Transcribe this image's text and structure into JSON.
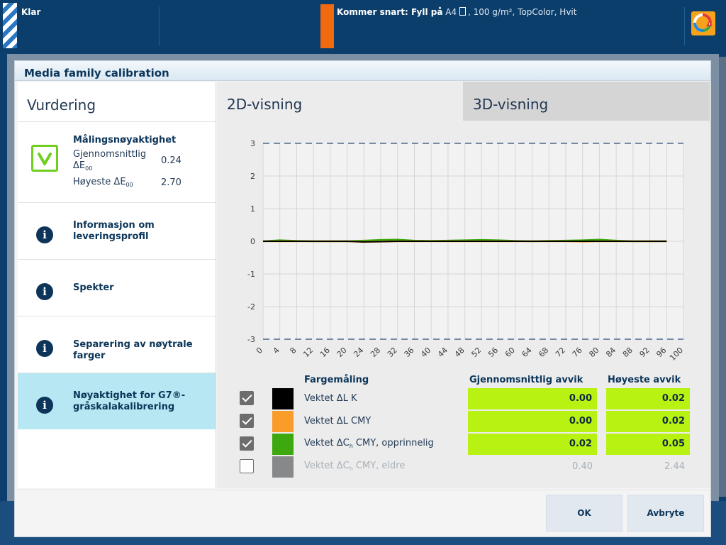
{
  "statusbar": {
    "status": "Klar",
    "coming_soon_label": "Kommer snart: Fyll på",
    "media_size": "A4",
    "media_info": ", 100 g/m², TopColor, Hvit",
    "icons": [
      "striped-status-icon",
      "document-icon",
      "color-alert-icon"
    ],
    "colors": {
      "bar": "#0c3e6b",
      "accent": "#f26a10"
    }
  },
  "dialog": {
    "title": "Media family calibration",
    "left": {
      "title": "Vurdering",
      "accuracy": {
        "title": "Målingsnøyaktighet",
        "avg_label": "Gjennomsnittlig",
        "avg_symbol": "ΔE",
        "avg_sub": "00",
        "avg_value": "0.24",
        "max_label": "Høyeste ΔE",
        "max_sub": "00",
        "max_value": "2.70"
      },
      "items": [
        {
          "label": "Informasjon om leveringsprofil",
          "icon": "info-icon"
        },
        {
          "label": "Spekter",
          "icon": "info-icon"
        },
        {
          "label": "Separering av nøytrale farger",
          "icon": "info-icon"
        },
        {
          "label": "Nøyaktighet for G7®-gråskalakalibrering",
          "icon": "info-icon",
          "selected": true
        }
      ]
    },
    "tabs": [
      {
        "label": "2D-visning",
        "active": true
      },
      {
        "label": "3D-visning",
        "active": false
      }
    ],
    "table": {
      "headers": {
        "measurement": "Fargemåling",
        "avg": "Gjennomsnittlig avvik",
        "max": "Høyeste avvik"
      },
      "rows": [
        {
          "label": "Vektet ΔL K",
          "color": "#000000",
          "checked": true,
          "avg": "0.00",
          "max": "0.02",
          "highlight": true
        },
        {
          "label": "Vektet ΔL CMY",
          "color": "#f99c2a",
          "checked": true,
          "avg": "0.00",
          "max": "0.02",
          "highlight": true
        },
        {
          "label_pre": "Vektet ΔC",
          "label_sub": "h",
          "label_post": " CMY, opprinnelig",
          "color": "#3ea80f",
          "checked": true,
          "avg": "0.02",
          "max": "0.05",
          "highlight": true
        },
        {
          "label_pre": "Vektet ΔC",
          "label_sub": "h",
          "label_post": " CMY, eldre",
          "color": "#86888a",
          "checked": false,
          "avg": "0.40",
          "max": "2.44",
          "highlight": false
        }
      ]
    },
    "buttons": {
      "ok": "OK",
      "cancel": "Avbryte"
    }
  },
  "chart_data": {
    "type": "line",
    "title": "",
    "xlabel": "",
    "ylabel": "",
    "xlim": [
      0,
      100
    ],
    "ylim": [
      -3,
      3
    ],
    "x_ticks": [
      0,
      4,
      8,
      12,
      16,
      20,
      24,
      28,
      32,
      36,
      40,
      44,
      48,
      52,
      56,
      60,
      64,
      68,
      72,
      76,
      80,
      84,
      88,
      92,
      96,
      100
    ],
    "y_ticks": [
      3,
      2,
      1,
      0,
      -1,
      -2,
      -3
    ],
    "tolerance_lines": [
      3,
      -3
    ],
    "grid": true,
    "x": [
      0,
      4,
      8,
      12,
      16,
      20,
      24,
      28,
      32,
      36,
      40,
      44,
      48,
      52,
      56,
      60,
      64,
      68,
      72,
      76,
      80,
      84,
      88,
      92,
      96
    ],
    "series": [
      {
        "color": "#3ea80f",
        "values": [
          0,
          0.03,
          0.01,
          0,
          0,
          0,
          0.02,
          0.04,
          0.05,
          0.02,
          0.01,
          0.02,
          0.03,
          0.04,
          0.03,
          0.01,
          0,
          0.01,
          0.02,
          0.03,
          0.05,
          0.02,
          0,
          0,
          0
        ]
      },
      {
        "color": "#f99c2a",
        "values": [
          0,
          0,
          0,
          0,
          0,
          0,
          -0.02,
          -0.01,
          0,
          0,
          0,
          0,
          0,
          0,
          0,
          0,
          0,
          0,
          0,
          -0.01,
          0,
          0,
          0,
          0,
          0
        ]
      },
      {
        "color": "#000000",
        "values": [
          0,
          0,
          0,
          0,
          0,
          0,
          -0.02,
          -0.01,
          0,
          0,
          0,
          0,
          0,
          0,
          0,
          0,
          0,
          0,
          0,
          0,
          0,
          0,
          0,
          0,
          0
        ]
      }
    ]
  }
}
